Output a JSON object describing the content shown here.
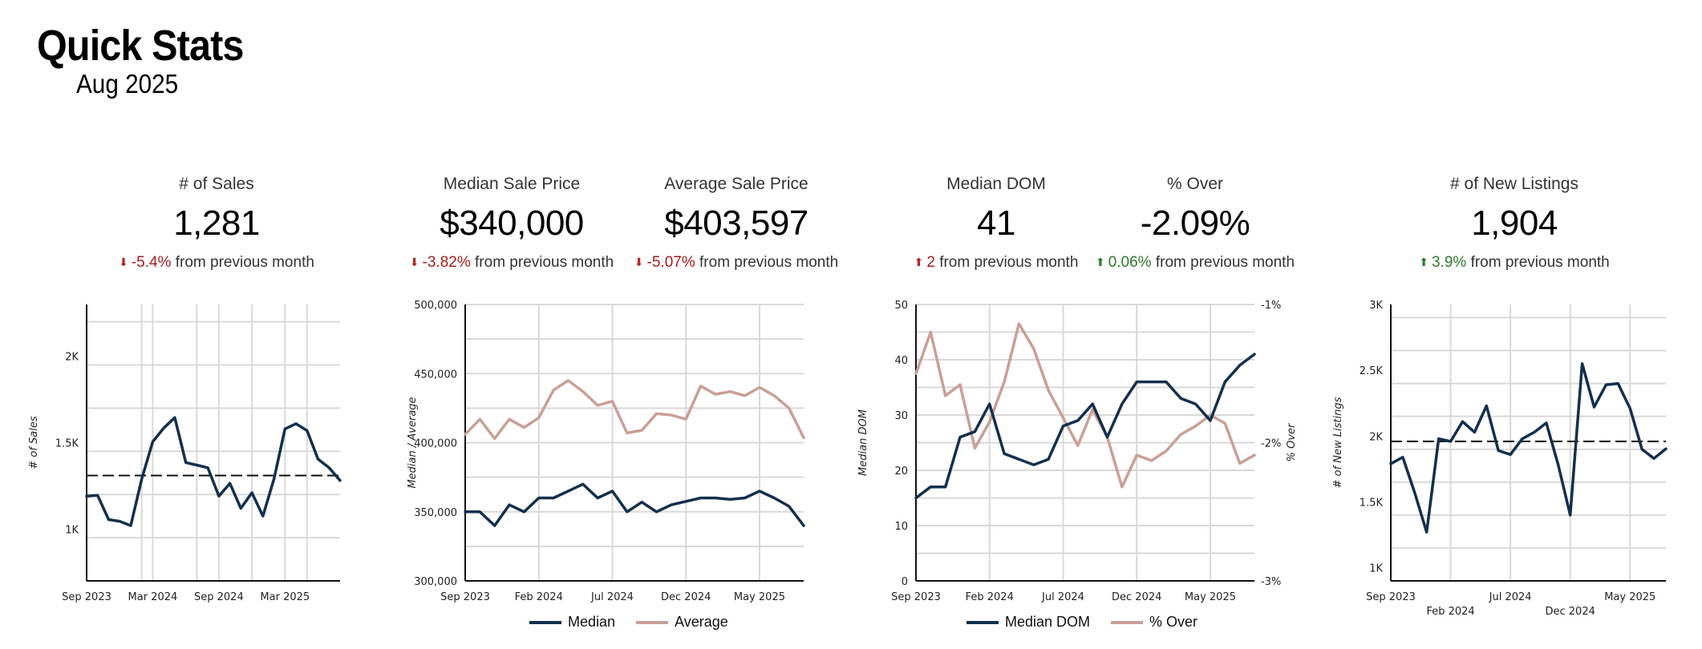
{
  "page": {
    "title": "Quick Stats",
    "subtitle": "Aug 2025"
  },
  "stats": [
    {
      "label": "# of Sales",
      "value": "1,281",
      "change": "-5.4%",
      "direction": "down",
      "suffix": "from previous month"
    },
    {
      "label": "Median Sale Price",
      "value": "$340,000",
      "change": "-3.82%",
      "direction": "down",
      "suffix": "from previous month"
    },
    {
      "label": "Average Sale Price",
      "value": "$403,597",
      "change": "-5.07%",
      "direction": "down",
      "suffix": "from previous month"
    },
    {
      "label": "Median DOM",
      "value": "41",
      "change": "2",
      "direction": "up-bad",
      "suffix": "from previous month"
    },
    {
      "label": "% Over",
      "value": "-2.09%",
      "change": "0.06%",
      "direction": "up",
      "suffix": "from previous month"
    },
    {
      "label": "# of New Listings",
      "value": "1,904",
      "change": "3.9%",
      "direction": "up",
      "suffix": "from previous month"
    }
  ],
  "colors": {
    "navy": "#12304d",
    "rose": "#c9a097",
    "grid": "#d9d9d9",
    "down": "#a61c1c",
    "up": "#2f7a2f"
  },
  "chart_data": [
    {
      "type": "line",
      "ylabel": "# of Sales",
      "ylim": [
        700,
        2300
      ],
      "yticks": [
        1000,
        1500,
        2000
      ],
      "ytick_labels": [
        "1K",
        "1.5K",
        "2K"
      ],
      "xtick_labels": [
        "Sep 2023",
        "Mar 2024",
        "Sep 2024",
        "Mar 2025"
      ],
      "xtick_positions": [
        0,
        6,
        12,
        18
      ],
      "x_count": 24,
      "reference_line": 1310,
      "series": [
        {
          "values": [
            1190,
            1195,
            1055,
            1045,
            1020,
            1290,
            1505,
            1585,
            1645,
            1385,
            1370,
            1355,
            1190,
            1265,
            1120,
            1210,
            1075,
            1290,
            1580,
            1610,
            1570,
            1405,
            1355,
            1281
          ],
          "color": "#12304d"
        }
      ]
    },
    {
      "type": "line",
      "ylabel": "Median / Average",
      "ylim": [
        300000,
        500000
      ],
      "yticks": [
        300000,
        350000,
        400000,
        450000,
        500000
      ],
      "ytick_labels": [
        "300,000",
        "350,000",
        "400,000",
        "450,000",
        "500,000"
      ],
      "xtick_labels": [
        "Sep 2023",
        "Feb 2024",
        "Jul 2024",
        "Dec 2024",
        "May 2025"
      ],
      "xtick_positions": [
        0,
        5,
        10,
        15,
        20
      ],
      "x_count": 24,
      "series": [
        {
          "name": "Median",
          "color": "#12304d",
          "values": [
            350000,
            350000,
            340000,
            355000,
            350000,
            360000,
            360000,
            365000,
            370000,
            360000,
            365000,
            350000,
            357000,
            350000,
            355000,
            357500,
            360000,
            360000,
            359000,
            360000,
            365000,
            360000,
            354000,
            340000
          ]
        },
        {
          "name": "Average",
          "color": "#c9a097",
          "values": [
            406000,
            417000,
            403000,
            417000,
            411000,
            418000,
            438000,
            445000,
            437000,
            427000,
            430000,
            407000,
            409000,
            421000,
            420000,
            417000,
            441000,
            435000,
            437000,
            434000,
            440000,
            434000,
            425000,
            403597
          ]
        }
      ]
    },
    {
      "type": "line",
      "ylabel": "Median DOM",
      "y2label": "% Over",
      "ylim": [
        0,
        50
      ],
      "yticks": [
        0,
        10,
        20,
        30,
        40,
        50
      ],
      "ytick_labels": [
        "0",
        "10",
        "20",
        "30",
        "40",
        "50"
      ],
      "y2lim": [
        -3,
        -1
      ],
      "y2ticks": [
        -3,
        -2,
        -1
      ],
      "y2tick_labels": [
        "-3%",
        "-2%",
        "-1%"
      ],
      "xtick_labels": [
        "Sep 2023",
        "Feb 2024",
        "Jul 2024",
        "Dec 2024",
        "May 2025"
      ],
      "xtick_positions": [
        0,
        5,
        10,
        15,
        20
      ],
      "x_count": 24,
      "series": [
        {
          "name": "Median DOM",
          "axis": "left",
          "color": "#12304d",
          "values": [
            15,
            17,
            17,
            26,
            27,
            32,
            23,
            22,
            21,
            22,
            28,
            29,
            32,
            26,
            32,
            36,
            36,
            36,
            33,
            32,
            29,
            36,
            39,
            41
          ]
        },
        {
          "name": "% Over",
          "axis": "right",
          "color": "#c9a097",
          "values": [
            -1.5,
            -1.2,
            -1.66,
            -1.58,
            -2.04,
            -1.85,
            -1.56,
            -1.14,
            -1.32,
            -1.62,
            -1.82,
            -2.02,
            -1.76,
            -1.96,
            -2.32,
            -2.09,
            -2.13,
            -2.06,
            -1.94,
            -1.88,
            -1.8,
            -1.86,
            -2.15,
            -2.09
          ]
        }
      ]
    },
    {
      "type": "line",
      "ylabel": "# of New Listings",
      "ylim": [
        900,
        3000
      ],
      "yticks": [
        1000,
        1500,
        2000,
        2500,
        3000
      ],
      "ytick_labels": [
        "1K",
        "1.5K",
        "2K",
        "2.5K",
        "3K"
      ],
      "xtick_labels": [
        "Sep 2023",
        "Feb 2024",
        "Jul 2024",
        "Dec 2024",
        "May 2025"
      ],
      "xtick_positions": [
        0,
        5,
        10,
        15,
        20
      ],
      "xtick_staggered": true,
      "x_count": 24,
      "reference_line": 1960,
      "series": [
        {
          "values": [
            1790,
            1840,
            1570,
            1270,
            1980,
            1960,
            2110,
            2030,
            2230,
            1890,
            1860,
            1980,
            2030,
            2100,
            1780,
            1400,
            2550,
            2220,
            2390,
            2400,
            2210,
            1900,
            1830,
            1904
          ],
          "color": "#12304d"
        }
      ]
    }
  ],
  "legends": [
    {
      "items": [
        {
          "label": "Median",
          "color": "#12304d"
        },
        {
          "label": "Average",
          "color": "#c9a097"
        }
      ]
    },
    {
      "items": [
        {
          "label": "Median DOM",
          "color": "#12304d"
        },
        {
          "label": "% Over",
          "color": "#c9a097"
        }
      ]
    }
  ]
}
